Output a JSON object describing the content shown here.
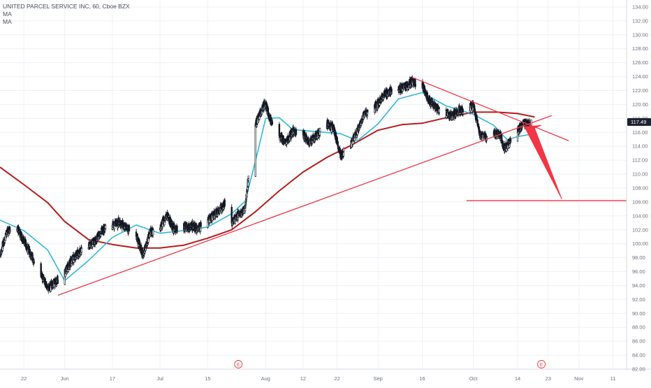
{
  "header": {
    "title": "UNITED PARCEL SERVICE INC, 60, Cboe BZX",
    "indicators": [
      "MA",
      "MA"
    ]
  },
  "colors": {
    "background": "#ffffff",
    "candle": "#131722",
    "ma_fast": "#2fb9d6",
    "ma_slow": "#b71c1c",
    "drawing": "#f23645",
    "grid": "#eef0f4",
    "axis_text": "#6b7080",
    "price_tag": "#1e2230"
  },
  "chart_data": {
    "type": "candlestick",
    "symbol": "UNITED PARCEL SERVICE INC",
    "interval": "60",
    "exchange": "Cboe BZX",
    "x_ticks": [
      {
        "label": "22",
        "date": "2019-05-22"
      },
      {
        "label": "Jun",
        "date": "2019-06-03"
      },
      {
        "label": "17",
        "date": "2019-06-17"
      },
      {
        "label": "Jul",
        "date": "2019-07-01"
      },
      {
        "label": "15",
        "date": "2019-07-15"
      },
      {
        "label": "Aug",
        "date": "2019-08-01"
      },
      {
        "label": "12",
        "date": "2019-08-12"
      },
      {
        "label": "22",
        "date": "2019-08-22"
      },
      {
        "label": "Sep",
        "date": "2019-09-03"
      },
      {
        "label": "16",
        "date": "2019-09-16"
      },
      {
        "label": "Oct",
        "date": "2019-10-01"
      },
      {
        "label": "14",
        "date": "2019-10-14"
      },
      {
        "label": "23",
        "date": "2019-10-23"
      },
      {
        "label": "Nov",
        "date": "2019-11-01"
      },
      {
        "label": "11",
        "date": "2019-11-11"
      }
    ],
    "y_ticks": [
      "82.00",
      "84.00",
      "86.00",
      "88.00",
      "90.00",
      "92.00",
      "94.00",
      "96.00",
      "98.00",
      "100.00",
      "102.00",
      "104.00",
      "106.00",
      "108.00",
      "110.00",
      "112.00",
      "114.00",
      "116.00",
      "118.00",
      "120.00",
      "122.00",
      "124.00",
      "126.00",
      "128.00",
      "130.00",
      "132.00",
      "134.00"
    ],
    "ylim": [
      82,
      135
    ],
    "xlim": [
      "2019-05-15",
      "2019-11-15"
    ],
    "last_price": "117.49",
    "last_price_value": 117.49,
    "price_path": [
      [
        "2019-05-15",
        98.4
      ],
      [
        "2019-05-17",
        101.8
      ],
      [
        "2019-05-20",
        102.3
      ],
      [
        "2019-05-22",
        100.5
      ],
      [
        "2019-05-24",
        98.4
      ],
      [
        "2019-05-27",
        95.6
      ],
      [
        "2019-05-29",
        93.6
      ],
      [
        "2019-05-31",
        94.3
      ],
      [
        "2019-06-03",
        95.8
      ],
      [
        "2019-06-05",
        97.6
      ],
      [
        "2019-06-07",
        98.6
      ],
      [
        "2019-06-10",
        99.6
      ],
      [
        "2019-06-12",
        100.4
      ],
      [
        "2019-06-14",
        102.0
      ],
      [
        "2019-06-17",
        102.6
      ],
      [
        "2019-06-19",
        103.1
      ],
      [
        "2019-06-21",
        102.4
      ],
      [
        "2019-06-24",
        101.1
      ],
      [
        "2019-06-26",
        98.4
      ],
      [
        "2019-06-28",
        101.6
      ],
      [
        "2019-07-01",
        102.3
      ],
      [
        "2019-07-03",
        104.1
      ],
      [
        "2019-07-05",
        102.1
      ],
      [
        "2019-07-08",
        102.4
      ],
      [
        "2019-07-10",
        102.6
      ],
      [
        "2019-07-12",
        102.2
      ],
      [
        "2019-07-15",
        103.2
      ],
      [
        "2019-07-17",
        104.2
      ],
      [
        "2019-07-19",
        105.2
      ],
      [
        "2019-07-21",
        106.6
      ],
      [
        "2019-07-22",
        103.0
      ],
      [
        "2019-07-24",
        104.2
      ],
      [
        "2019-07-26",
        105.0
      ],
      [
        "2019-07-28",
        114.5
      ],
      [
        "2019-07-29",
        117.1
      ],
      [
        "2019-07-31",
        119.4
      ],
      [
        "2019-08-01",
        120.2
      ],
      [
        "2019-08-02",
        118.2
      ],
      [
        "2019-08-05",
        115.5
      ],
      [
        "2019-08-07",
        114.4
      ],
      [
        "2019-08-09",
        116.3
      ],
      [
        "2019-08-12",
        115.6
      ],
      [
        "2019-08-14",
        114.6
      ],
      [
        "2019-08-16",
        115.6
      ],
      [
        "2019-08-19",
        117.1
      ],
      [
        "2019-08-21",
        116.6
      ],
      [
        "2019-08-23",
        112.6
      ],
      [
        "2019-08-26",
        114.2
      ],
      [
        "2019-08-28",
        116.2
      ],
      [
        "2019-08-30",
        118.6
      ],
      [
        "2019-09-03",
        120.1
      ],
      [
        "2019-09-05",
        121.6
      ],
      [
        "2019-09-09",
        122.1
      ],
      [
        "2019-09-11",
        122.6
      ],
      [
        "2019-09-13",
        123.3
      ],
      [
        "2019-09-16",
        122.6
      ],
      [
        "2019-09-18",
        120.6
      ],
      [
        "2019-09-20",
        119.6
      ],
      [
        "2019-09-23",
        118.6
      ],
      [
        "2019-09-25",
        118.4
      ],
      [
        "2019-09-27",
        119.1
      ],
      [
        "2019-10-01",
        119.8
      ],
      [
        "2019-10-03",
        115.6
      ],
      [
        "2019-10-05",
        115.2
      ],
      [
        "2019-10-07",
        115.9
      ],
      [
        "2019-10-09",
        115.6
      ],
      [
        "2019-10-10",
        113.6
      ],
      [
        "2019-10-12",
        114.7
      ],
      [
        "2019-10-14",
        116.3
      ],
      [
        "2019-10-16",
        117.3
      ],
      [
        "2019-10-18",
        117.5
      ]
    ],
    "ma_fast": [
      [
        "2019-05-15",
        103.4
      ],
      [
        "2019-05-22",
        101.9
      ],
      [
        "2019-05-29",
        99.1
      ],
      [
        "2019-06-03",
        94.7
      ],
      [
        "2019-06-10",
        97.6
      ],
      [
        "2019-06-17",
        100.9
      ],
      [
        "2019-06-24",
        102.7
      ],
      [
        "2019-07-01",
        101.5
      ],
      [
        "2019-07-08",
        101.9
      ],
      [
        "2019-07-15",
        102.4
      ],
      [
        "2019-07-22",
        104.3
      ],
      [
        "2019-07-26",
        106.1
      ],
      [
        "2019-07-29",
        111.8
      ],
      [
        "2019-08-01",
        118.0
      ],
      [
        "2019-08-05",
        118.1
      ],
      [
        "2019-08-09",
        116.4
      ],
      [
        "2019-08-16",
        116.1
      ],
      [
        "2019-08-23",
        115.8
      ],
      [
        "2019-08-28",
        114.8
      ],
      [
        "2019-09-03",
        117.2
      ],
      [
        "2019-09-09",
        120.8
      ],
      [
        "2019-09-16",
        121.7
      ],
      [
        "2019-09-23",
        119.8
      ],
      [
        "2019-10-01",
        118.6
      ],
      [
        "2019-10-07",
        117.0
      ],
      [
        "2019-10-11",
        114.9
      ],
      [
        "2019-10-14",
        115.4
      ],
      [
        "2019-10-19",
        115.8
      ]
    ],
    "ma_slow": [
      [
        "2019-05-15",
        111.0
      ],
      [
        "2019-05-22",
        108.5
      ],
      [
        "2019-05-29",
        105.9
      ],
      [
        "2019-06-03",
        103.2
      ],
      [
        "2019-06-10",
        100.6
      ],
      [
        "2019-06-17",
        99.9
      ],
      [
        "2019-06-24",
        99.4
      ],
      [
        "2019-07-01",
        99.4
      ],
      [
        "2019-07-08",
        99.8
      ],
      [
        "2019-07-15",
        100.8
      ],
      [
        "2019-07-22",
        102.0
      ],
      [
        "2019-07-29",
        104.6
      ],
      [
        "2019-08-05",
        107.6
      ],
      [
        "2019-08-12",
        110.3
      ],
      [
        "2019-08-19",
        112.4
      ],
      [
        "2019-08-26",
        114.1
      ],
      [
        "2019-09-03",
        116.3
      ],
      [
        "2019-09-10",
        117.1
      ],
      [
        "2019-09-16",
        117.3
      ],
      [
        "2019-09-23",
        118.1
      ],
      [
        "2019-10-01",
        118.9
      ],
      [
        "2019-10-08",
        118.9
      ],
      [
        "2019-10-14",
        118.7
      ],
      [
        "2019-10-19",
        118.2
      ]
    ],
    "drawings": [
      {
        "type": "trendline",
        "from": [
          "2019-06-01",
          92.6
        ],
        "to": [
          "2019-10-24",
          118.4
        ]
      },
      {
        "type": "trendline",
        "from": [
          "2019-09-13",
          123.9
        ],
        "to": [
          "2019-10-29",
          114.8
        ]
      },
      {
        "type": "horizontal",
        "from": [
          "2019-09-29",
          106.2
        ],
        "to": [
          "2019-11-15",
          106.2
        ]
      },
      {
        "type": "arrow",
        "points": [
          [
            "2019-10-16",
            116.8
          ],
          [
            "2019-10-21",
            117.0
          ],
          [
            "2019-10-19",
            116.6
          ],
          [
            "2019-10-27",
            106.4
          ]
        ]
      }
    ],
    "events": [
      {
        "label": "E",
        "date": "2019-07-24"
      },
      {
        "label": "E",
        "date": "2019-10-21"
      }
    ],
    "grid": true,
    "legend": "top-left"
  }
}
